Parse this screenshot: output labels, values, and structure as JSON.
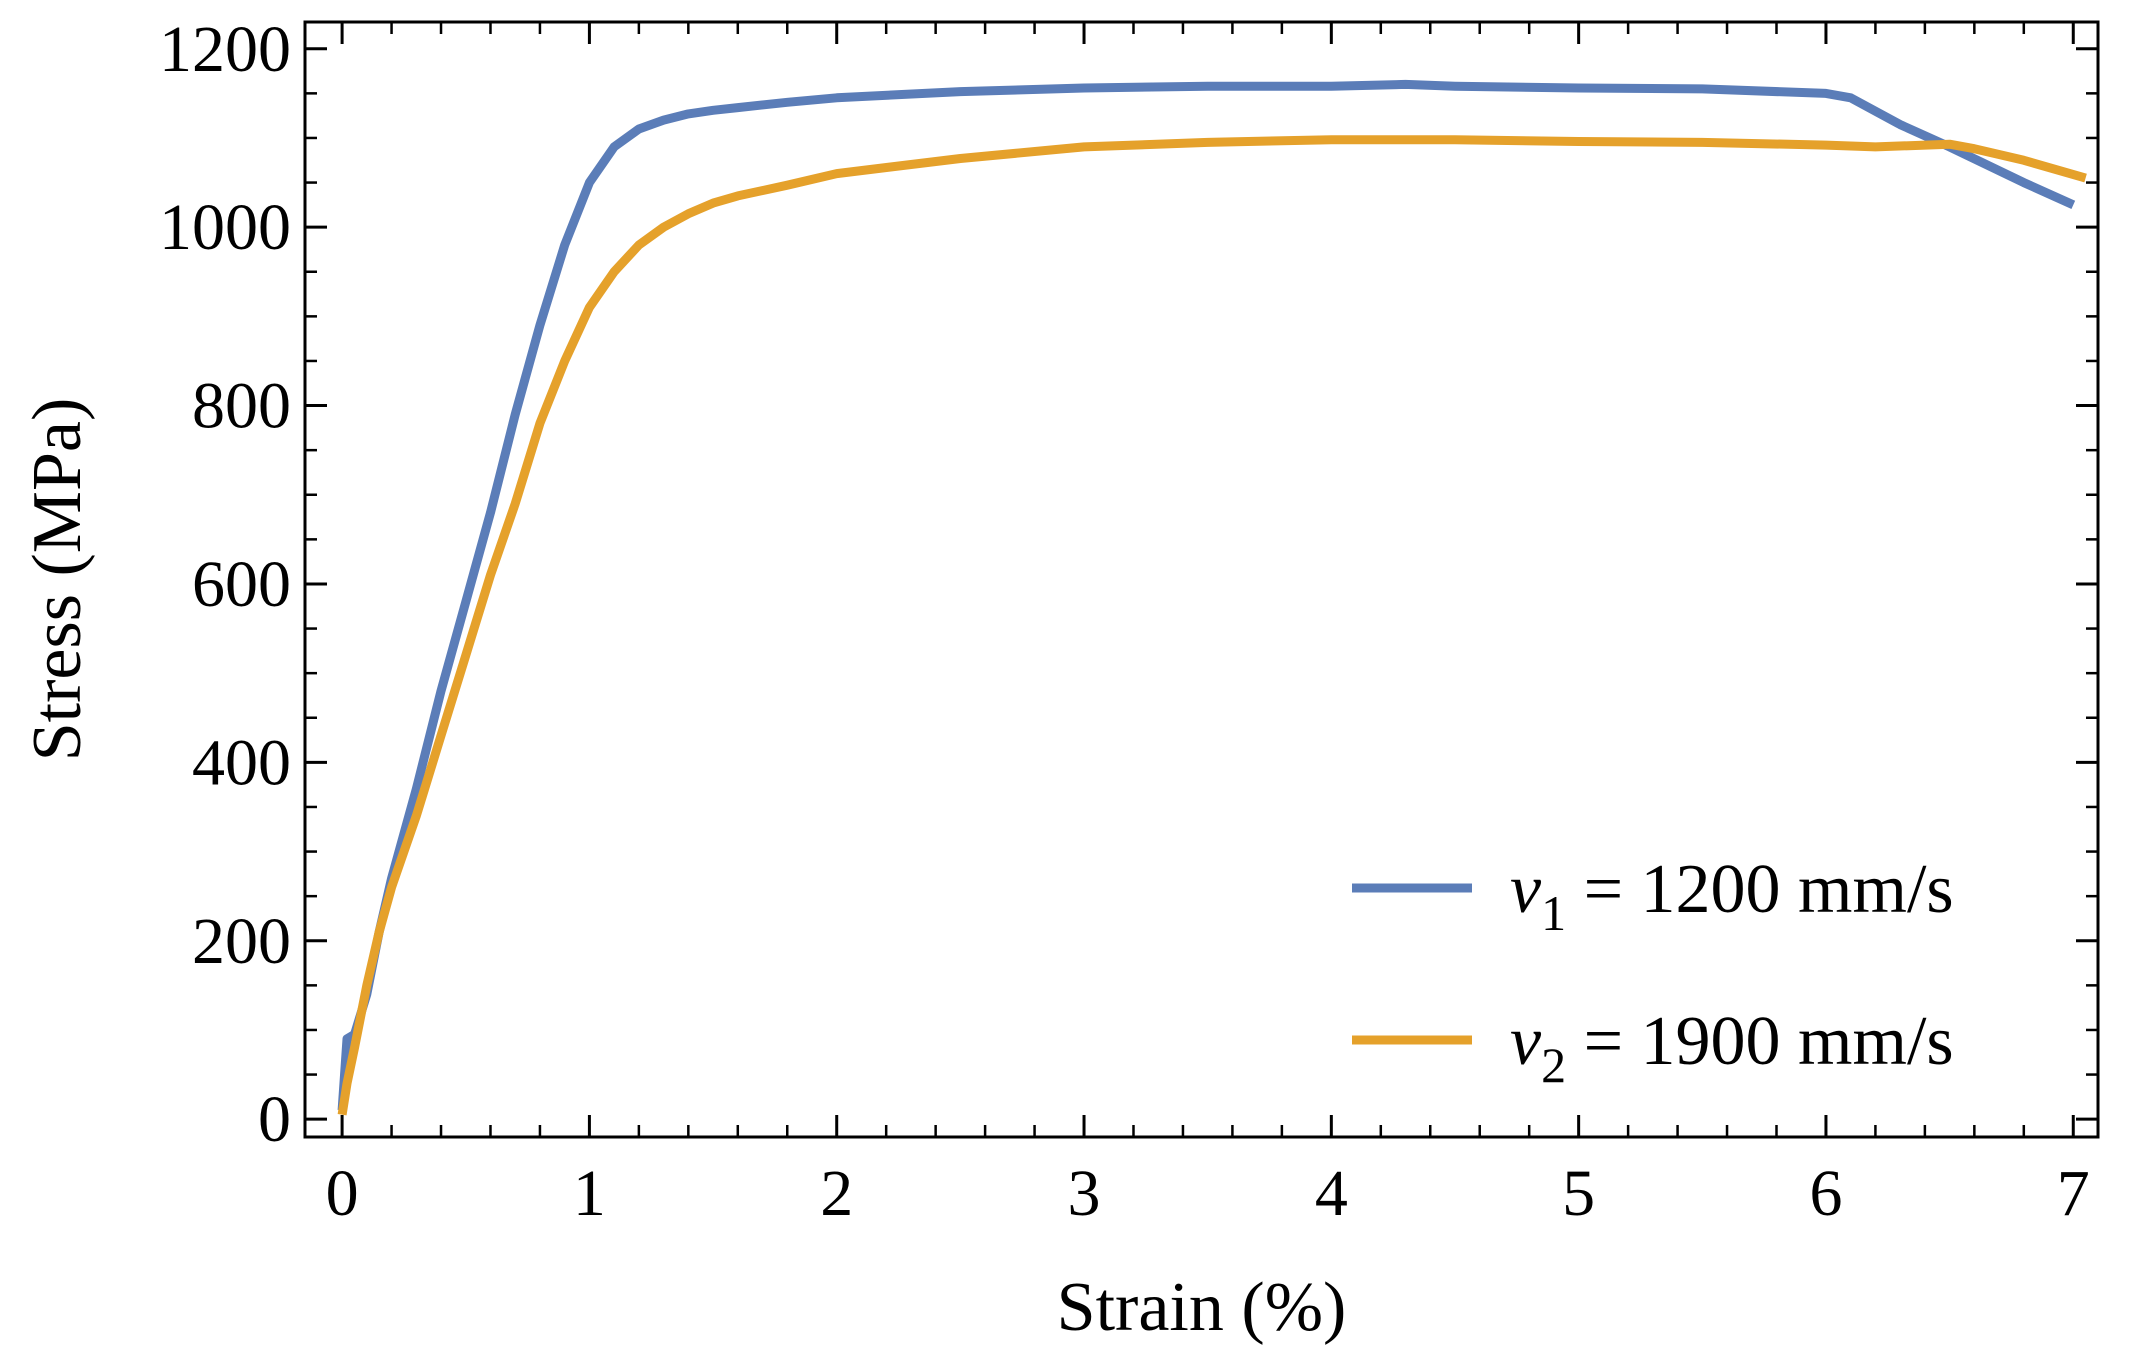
{
  "chart_data": {
    "type": "line",
    "title": "",
    "xlabel": "Strain (%)",
    "ylabel": "Stress (MPa)",
    "xlim": [
      -0.15,
      7.1
    ],
    "ylim": [
      -20,
      1230
    ],
    "xticks": [
      0,
      1,
      2,
      3,
      4,
      5,
      6,
      7
    ],
    "yticks": [
      0,
      200,
      400,
      600,
      800,
      1000,
      1200
    ],
    "xtick_labels": [
      "0",
      "1",
      "2",
      "3",
      "4",
      "5",
      "6",
      "7"
    ],
    "ytick_labels": [
      "0",
      "200",
      "400",
      "600",
      "800",
      "1000",
      "1200"
    ],
    "grid": false,
    "legend_position": "bottom-right",
    "series": [
      {
        "name": "v1 = 1200 mm/s",
        "legend": {
          "var": "v",
          "sub": "1",
          "rest": " = 1200 mm/s"
        },
        "color": "#5B7DB8",
        "x": [
          0,
          0.02,
          0.05,
          0.1,
          0.15,
          0.2,
          0.3,
          0.4,
          0.5,
          0.6,
          0.7,
          0.8,
          0.9,
          1.0,
          1.1,
          1.2,
          1.3,
          1.4,
          1.5,
          1.6,
          1.8,
          2.0,
          2.5,
          3.0,
          3.5,
          4.0,
          4.3,
          4.5,
          5.0,
          5.5,
          6.0,
          6.1,
          6.3,
          6.5,
          6.8,
          7.0
        ],
        "y": [
          10,
          90,
          95,
          140,
          210,
          270,
          370,
          480,
          580,
          680,
          790,
          890,
          980,
          1050,
          1090,
          1110,
          1120,
          1127,
          1131,
          1134,
          1140,
          1145,
          1152,
          1156,
          1158,
          1158,
          1160,
          1158,
          1156,
          1155,
          1150,
          1145,
          1115,
          1090,
          1050,
          1025
        ]
      },
      {
        "name": "v2 = 1900 mm/s",
        "legend": {
          "var": "v",
          "sub": "2",
          "rest": " = 1900 mm/s"
        },
        "color": "#E5A12B",
        "x": [
          0,
          0.02,
          0.05,
          0.1,
          0.15,
          0.2,
          0.3,
          0.4,
          0.5,
          0.6,
          0.7,
          0.8,
          0.9,
          1.0,
          1.1,
          1.2,
          1.3,
          1.4,
          1.5,
          1.6,
          1.8,
          2.0,
          2.5,
          3.0,
          3.5,
          4.0,
          4.5,
          5.0,
          5.5,
          6.0,
          6.2,
          6.5,
          6.6,
          6.8,
          7.05
        ],
        "y": [
          5,
          40,
          80,
          150,
          210,
          260,
          340,
          430,
          520,
          610,
          690,
          780,
          850,
          910,
          950,
          980,
          1000,
          1015,
          1027,
          1035,
          1047,
          1060,
          1077,
          1090,
          1095,
          1098,
          1098,
          1096,
          1095,
          1092,
          1090,
          1093,
          1088,
          1075,
          1055
        ]
      }
    ]
  }
}
